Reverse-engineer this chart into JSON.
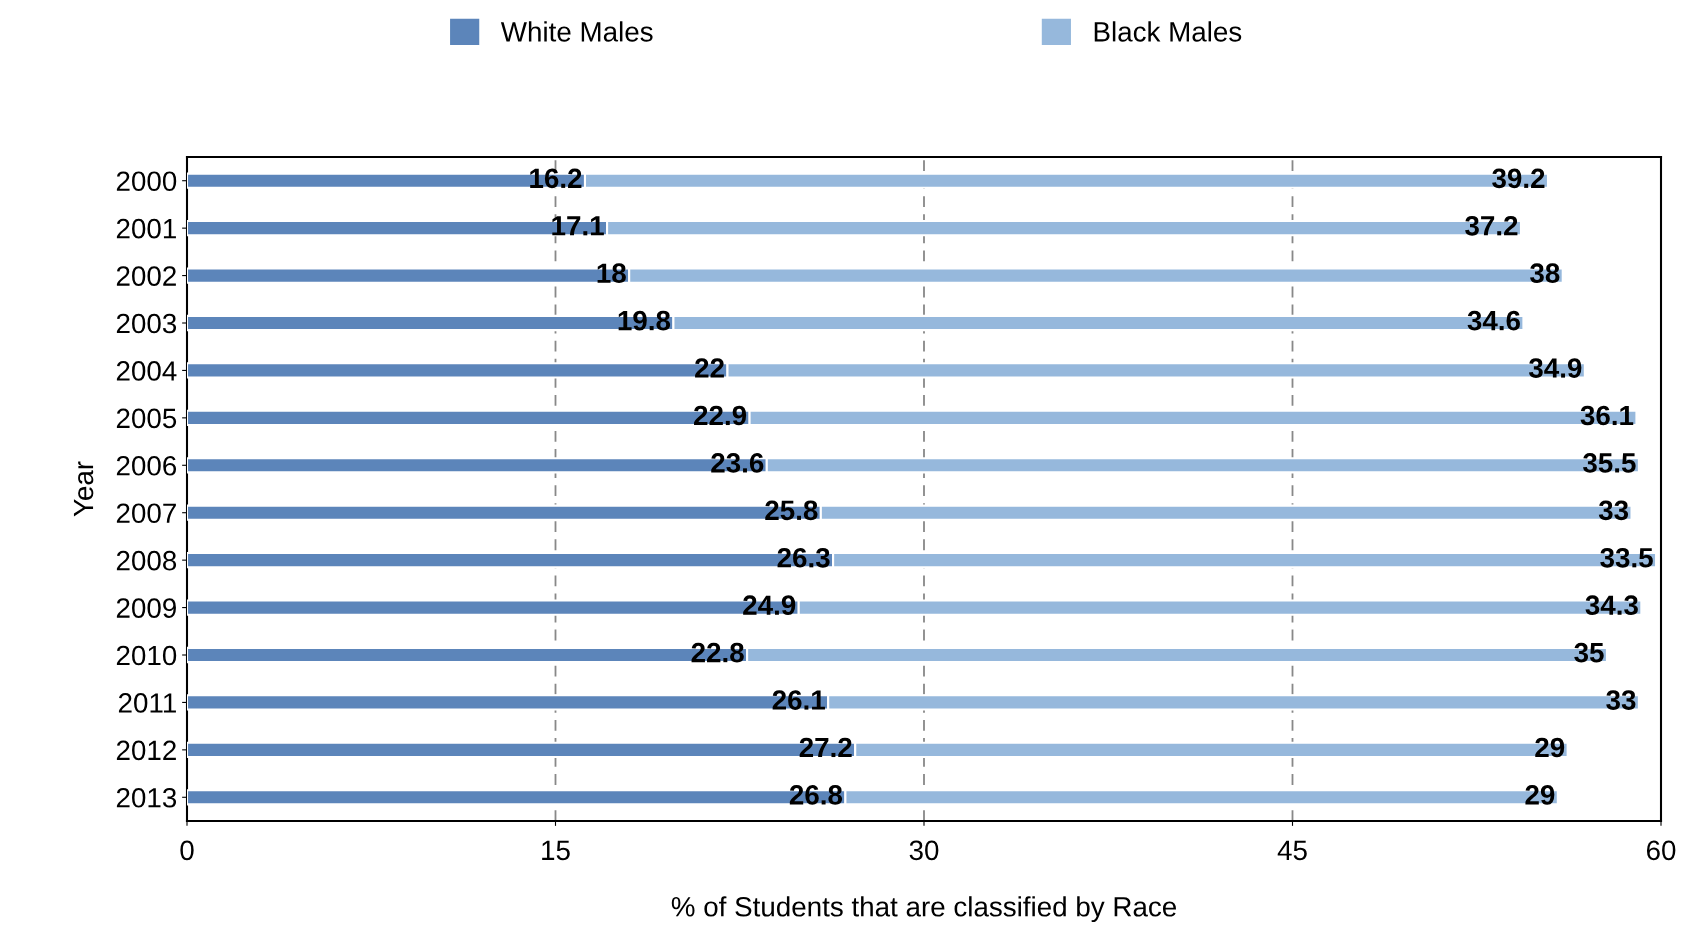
{
  "chart_data": {
    "type": "bar",
    "orientation": "horizontal",
    "stacked": true,
    "data_labels": true,
    "categories": [
      "2000",
      "2001",
      "2002",
      "2003",
      "2004",
      "2005",
      "2006",
      "2007",
      "2008",
      "2009",
      "2010",
      "2011",
      "2012",
      "2013"
    ],
    "series": [
      {
        "name": "White Males",
        "color": "#5c85ba",
        "values": [
          16.2,
          17.1,
          18,
          19.8,
          22,
          22.9,
          23.6,
          25.8,
          26.3,
          24.9,
          22.8,
          26.1,
          27.2,
          26.8
        ]
      },
      {
        "name": "Black Males",
        "color": "#96b8dc",
        "values": [
          39.2,
          37.2,
          38,
          34.6,
          34.9,
          36.1,
          35.5,
          33,
          33.5,
          34.3,
          35,
          33,
          29,
          29
        ]
      }
    ],
    "xlabel": "% of Students that are classified by Race",
    "ylabel": "Year",
    "xlim": [
      0,
      60
    ],
    "xticks": [
      0,
      15,
      30,
      45,
      60
    ],
    "grid": "x",
    "legend": "top"
  }
}
